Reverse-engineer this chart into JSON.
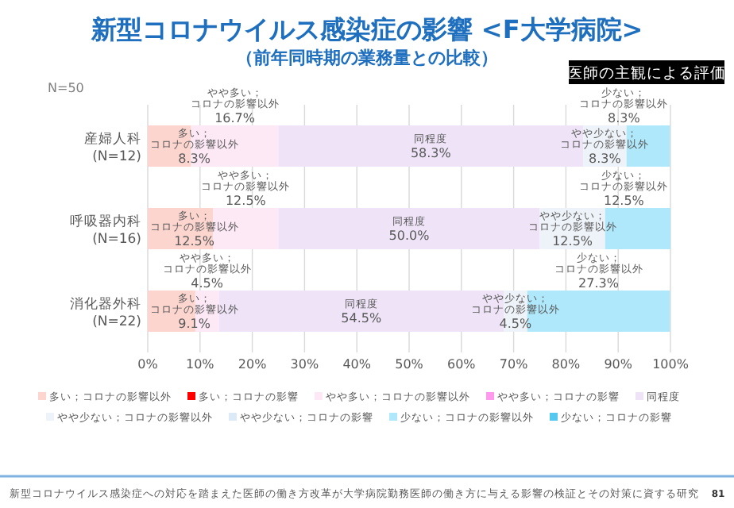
{
  "chart_data": {
    "type": "bar",
    "orientation": "horizontal",
    "stacked": true,
    "title": "新型コロナウイルス感染症の影響 <F大学病院>",
    "subtitle": "（前年同時期の業務量との比較）",
    "categories": [
      "産婦人科\n(N=12)",
      "呼吸器内科\n(N=16)",
      "消化器外科\n(N=22)"
    ],
    "series": [
      {
        "name": "多い；コロナの影響以外",
        "color": "#fcd5cf",
        "values": [
          8.3,
          12.5,
          9.1
        ],
        "value_labels": [
          "8.3%",
          "12.5%",
          "9.1%"
        ]
      },
      {
        "name": "多い；コロナの影響",
        "color": "#ff0000",
        "values": [
          0,
          0,
          0
        ],
        "value_labels": [
          null,
          null,
          null
        ]
      },
      {
        "name": "やや多い；コロナの影響以外",
        "color": "#fde8f6",
        "values": [
          16.7,
          12.5,
          4.5
        ],
        "value_labels": [
          "16.7%",
          "12.5%",
          "4.5%"
        ]
      },
      {
        "name": "やや多い；コロナの影響",
        "color": "#ff99ee",
        "values": [
          0,
          0,
          0
        ],
        "value_labels": [
          null,
          null,
          null
        ]
      },
      {
        "name": "同程度",
        "color": "#efe3f7",
        "values": [
          58.3,
          50.0,
          54.5
        ],
        "value_labels": [
          "58.3%",
          "50.0%",
          "54.5%"
        ]
      },
      {
        "name": "やや少ない；コロナの影響以外",
        "color": "#eef3f9",
        "values": [
          8.3,
          12.5,
          4.5
        ],
        "value_labels": [
          "8.3%",
          "12.5%",
          "4.5%"
        ]
      },
      {
        "name": "やや少ない；コロナの影響",
        "color": "#dce9f7",
        "values": [
          0,
          0,
          0
        ],
        "value_labels": [
          null,
          null,
          null
        ]
      },
      {
        "name": "少ない；コロナの影響以外",
        "color": "#aee8fa",
        "values": [
          8.3,
          12.5,
          27.3
        ],
        "value_labels": [
          "8.3%",
          "12.5%",
          "27.3%"
        ]
      },
      {
        "name": "少ない；コロナの影響",
        "color": "#55c8f0",
        "values": [
          0,
          0,
          0
        ],
        "value_labels": [
          null,
          null,
          null
        ]
      }
    ],
    "xlim": [
      0,
      100
    ],
    "xticks": [
      {
        "value": 0,
        "label": "0%"
      },
      {
        "value": 10,
        "label": "10%"
      },
      {
        "value": 20,
        "label": "20%"
      },
      {
        "value": 30,
        "label": "30%"
      },
      {
        "value": 40,
        "label": "40%"
      },
      {
        "value": 50,
        "label": "50%"
      },
      {
        "value": 60,
        "label": "60%"
      },
      {
        "value": 70,
        "label": "70%"
      },
      {
        "value": 80,
        "label": "80%"
      },
      {
        "value": 90,
        "label": "90%"
      },
      {
        "value": 100,
        "label": "100%"
      }
    ],
    "grid": "x",
    "legend": "bottom",
    "annotations": [
      "N=50",
      "医師の主観による評価",
      "新型コロナウイルス感染症への対応を踏まえた医師の働き方改革が大学病院勤務医師の働き方に与える影響の検証とその対策に資する研究",
      "81"
    ]
  }
}
